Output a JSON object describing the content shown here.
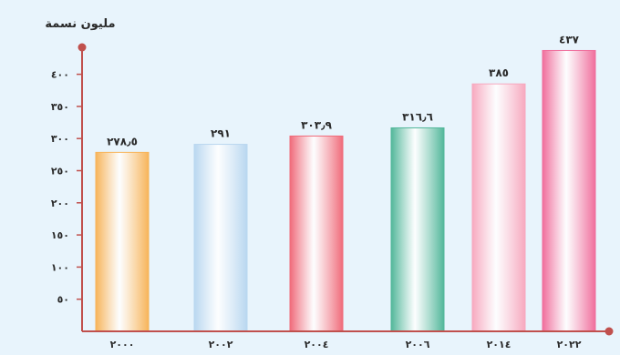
{
  "chart_data": {
    "type": "bar",
    "title": "",
    "ylabel": "مليون نسمة",
    "xlabel": "",
    "categories": [
      "٢٠٠٠",
      "٢٠٠٢",
      "٢٠٠٤",
      "٢٠٠٦",
      "٢٠١٤",
      "٢٠٢٢"
    ],
    "values": [
      278.5,
      291,
      303.9,
      316.6,
      385,
      437
    ],
    "value_labels": [
      "٢٧٨٫٥",
      "٢٩١",
      "٣٠٣٫٩",
      "٣١٦٫٦",
      "٣٨٥",
      "٤٣٧"
    ],
    "yticks": [
      50,
      100,
      150,
      200,
      250,
      300,
      350,
      400
    ],
    "ytick_labels": [
      "٥٠",
      "١٠٠",
      "١٥٠",
      "٢٠٠",
      "٢٥٠",
      "٣٠٠",
      "٣٥٠",
      "٤٠٠"
    ],
    "ylim": [
      0,
      450
    ],
    "grid": false,
    "colors": {
      "background": "#e8f4fc",
      "axis": "#c0504d",
      "bars": [
        "#f7b45a",
        "#b9d7f0",
        "#f06b7a",
        "#52b79a",
        "#f7a9bf",
        "#f06e9c"
      ]
    }
  }
}
